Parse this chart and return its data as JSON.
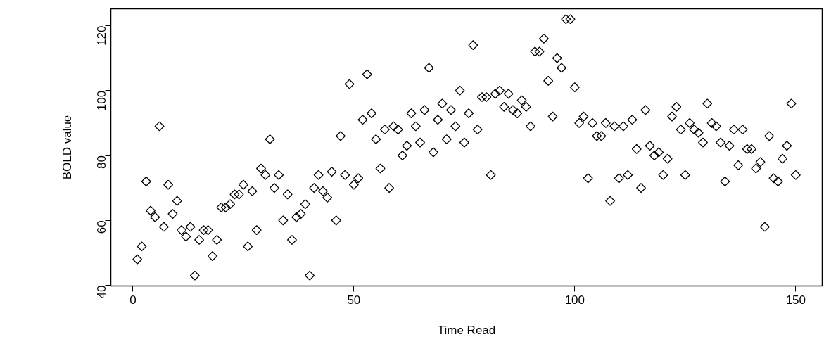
{
  "chart_data": {
    "type": "scatter",
    "xlabel": "Time Read",
    "ylabel": "BOLD value",
    "marker": "diamond",
    "grid": false,
    "x": [
      1,
      2,
      3,
      4,
      5,
      6,
      7,
      8,
      9,
      10,
      11,
      12,
      13,
      14,
      15,
      16,
      17,
      18,
      19,
      20,
      21,
      22,
      23,
      24,
      25,
      26,
      27,
      28,
      29,
      30,
      31,
      32,
      33,
      34,
      35,
      36,
      37,
      38,
      39,
      40,
      41,
      42,
      43,
      44,
      45,
      46,
      47,
      48,
      49,
      50,
      51,
      52,
      53,
      54,
      55,
      56,
      57,
      58,
      59,
      60,
      61,
      62,
      63,
      64,
      65,
      66,
      67,
      68,
      69,
      70,
      71,
      72,
      73,
      74,
      75,
      76,
      77,
      78,
      79,
      80,
      81,
      82,
      83,
      84,
      85,
      86,
      87,
      88,
      89,
      90,
      91,
      92,
      93,
      94,
      95,
      96,
      97,
      98,
      99,
      100,
      101,
      102,
      103,
      104,
      105,
      106,
      107,
      108,
      109,
      110,
      111,
      112,
      113,
      114,
      115,
      116,
      117,
      118,
      119,
      120,
      121,
      122,
      123,
      124,
      125,
      126,
      127,
      128,
      129,
      130,
      131,
      132,
      133,
      134,
      135,
      136,
      137,
      138,
      139,
      140,
      141,
      142,
      143,
      144,
      145,
      146,
      147,
      148,
      149,
      150
    ],
    "series": [
      {
        "color": "#000000",
        "values": [
          48,
          52,
          72,
          63,
          61,
          89,
          58,
          71,
          62,
          66,
          57,
          55,
          58,
          43,
          54,
          57,
          57,
          49,
          54,
          64,
          64,
          65,
          68,
          68,
          71,
          52,
          69,
          57,
          76,
          74,
          85,
          70,
          74,
          60,
          68,
          54,
          61,
          62,
          65,
          43,
          70,
          74,
          69,
          67,
          75,
          60,
          86,
          74,
          102,
          71,
          73,
          91,
          105,
          93,
          85,
          76,
          88,
          70,
          89,
          88,
          80,
          83,
          93,
          89,
          84,
          94,
          107,
          81,
          91,
          96,
          85,
          94,
          89,
          100,
          84,
          93,
          114,
          88,
          98,
          98,
          74,
          99,
          100,
          95,
          99,
          94,
          93,
          97,
          95,
          89,
          112,
          112,
          116,
          103,
          92,
          110,
          107,
          122,
          122,
          101,
          90,
          92,
          73,
          90,
          86,
          86,
          90,
          66,
          89,
          73,
          89,
          74,
          91,
          82,
          70,
          94,
          83,
          80,
          81,
          74,
          79,
          92,
          95,
          88,
          74,
          90,
          88,
          87,
          84,
          96,
          90,
          89,
          84,
          72,
          83,
          88,
          77,
          88,
          82,
          82,
          76,
          78,
          58,
          86,
          73,
          72,
          79,
          83,
          96,
          74
        ]
      }
    ],
    "xlim": [
      -5,
      156
    ],
    "ylim": [
      39.8,
      125.2
    ],
    "xticks": [
      0,
      50,
      100,
      150
    ],
    "yticks": [
      40,
      60,
      80,
      100,
      120
    ]
  }
}
